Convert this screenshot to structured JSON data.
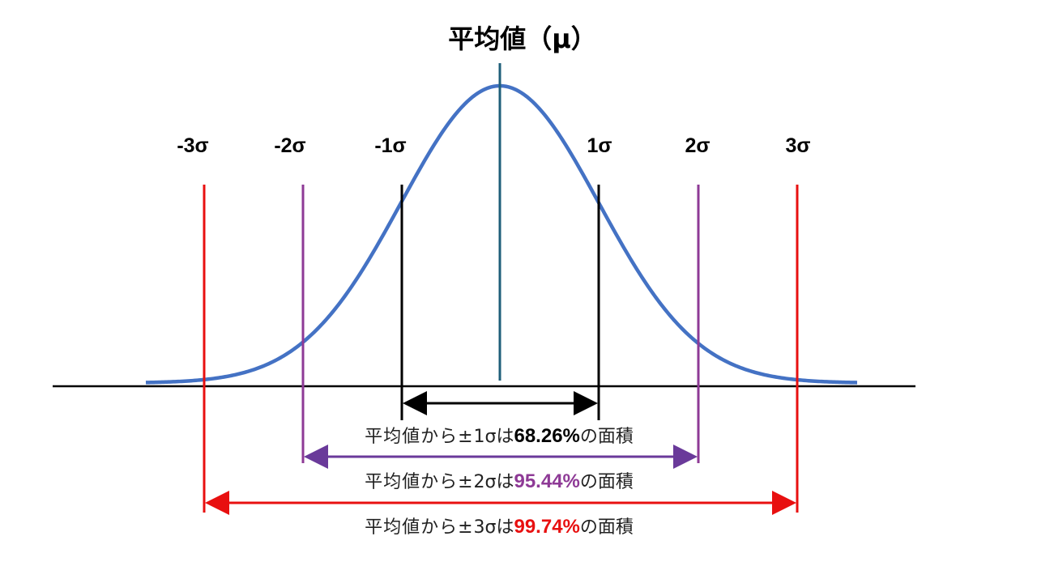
{
  "title": "平均値（μ）",
  "sigma_labels": [
    "-3σ",
    "-2σ",
    "-1σ",
    "1σ",
    "2σ",
    "3σ"
  ],
  "colors": {
    "curve": "#4472C4",
    "mean_line": "#1F5F7A",
    "one_sigma": "#000000",
    "two_sigma": "#8E3A96",
    "three_sigma": "#E81010",
    "axis": "#000000"
  },
  "annotations": [
    {
      "prefix": "平均値から±",
      "sigma": "1σ",
      "mid": "は",
      "percent": "68.26%",
      "suffix": "の面積",
      "color": "#000000"
    },
    {
      "prefix": "平均値から±",
      "sigma": "2σ",
      "mid": "は",
      "percent": "95.44%",
      "suffix": "の面積",
      "color": "#8E3A96"
    },
    {
      "prefix": "平均値から±",
      "sigma": "3σ",
      "mid": "は",
      "percent": "99.74%",
      "suffix": "の面積",
      "color": "#E81010"
    }
  ]
}
